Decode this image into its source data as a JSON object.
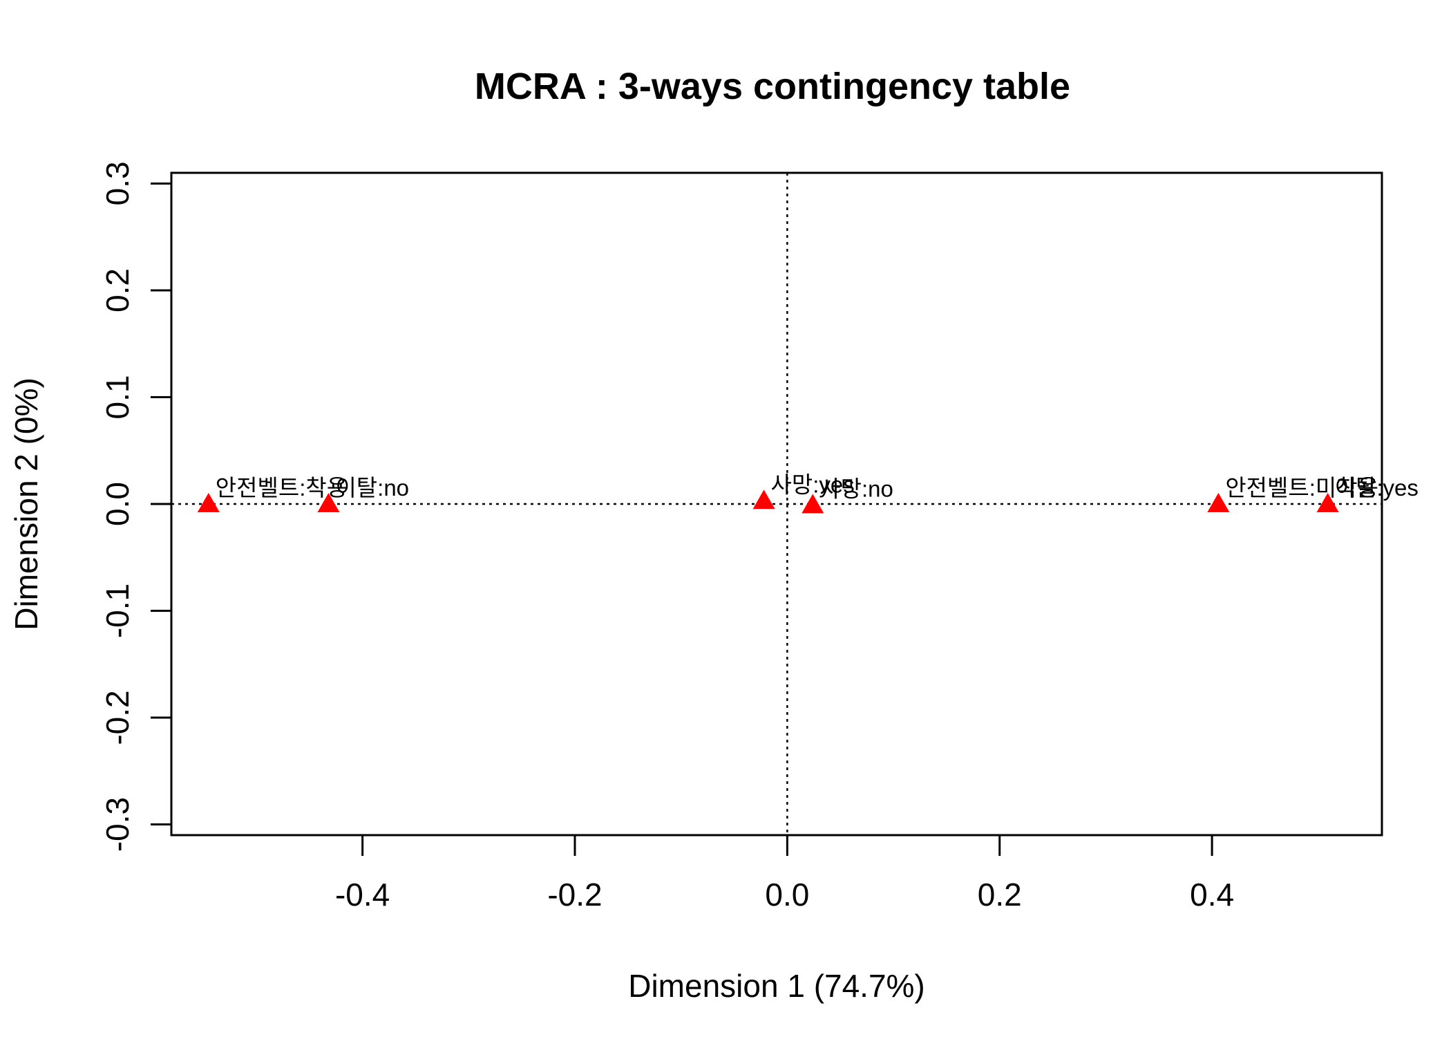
{
  "chart_data": {
    "type": "scatter",
    "title": "MCRA : 3-ways contingency table",
    "xlabel": "Dimension 1 (74.7%)",
    "ylabel": "Dimension 2 (0%)",
    "xlim": [
      -0.58,
      0.56
    ],
    "ylim": [
      -0.31,
      0.31
    ],
    "xticks": [
      -0.4,
      -0.2,
      0.0,
      0.2,
      0.4
    ],
    "xtick_labels": [
      "-0.4",
      "-0.2",
      "0.0",
      "0.2",
      "0.4"
    ],
    "yticks": [
      -0.3,
      -0.2,
      -0.1,
      0.0,
      0.1,
      0.2,
      0.3
    ],
    "ytick_labels": [
      "-0.3",
      "-0.2",
      "-0.1",
      "0.0",
      "0.1",
      "0.2",
      "0.3"
    ],
    "reference_lines": {
      "x": 0,
      "y": 0,
      "style": "dotted"
    },
    "marker": "triangle",
    "marker_color": "#ff0000",
    "points": [
      {
        "label": "안전벨트:착용",
        "x": -0.545,
        "y": 0.0
      },
      {
        "label": "이탈:no",
        "x": -0.432,
        "y": 0.0
      },
      {
        "label": "사망:yes",
        "x": -0.022,
        "y": 0.003
      },
      {
        "label": "사망:no",
        "x": 0.024,
        "y": -0.001
      },
      {
        "label": "안전벨트:미착용",
        "x": 0.406,
        "y": 0.0
      },
      {
        "label": "이탈:yes",
        "x": 0.509,
        "y": 0.0
      }
    ]
  }
}
